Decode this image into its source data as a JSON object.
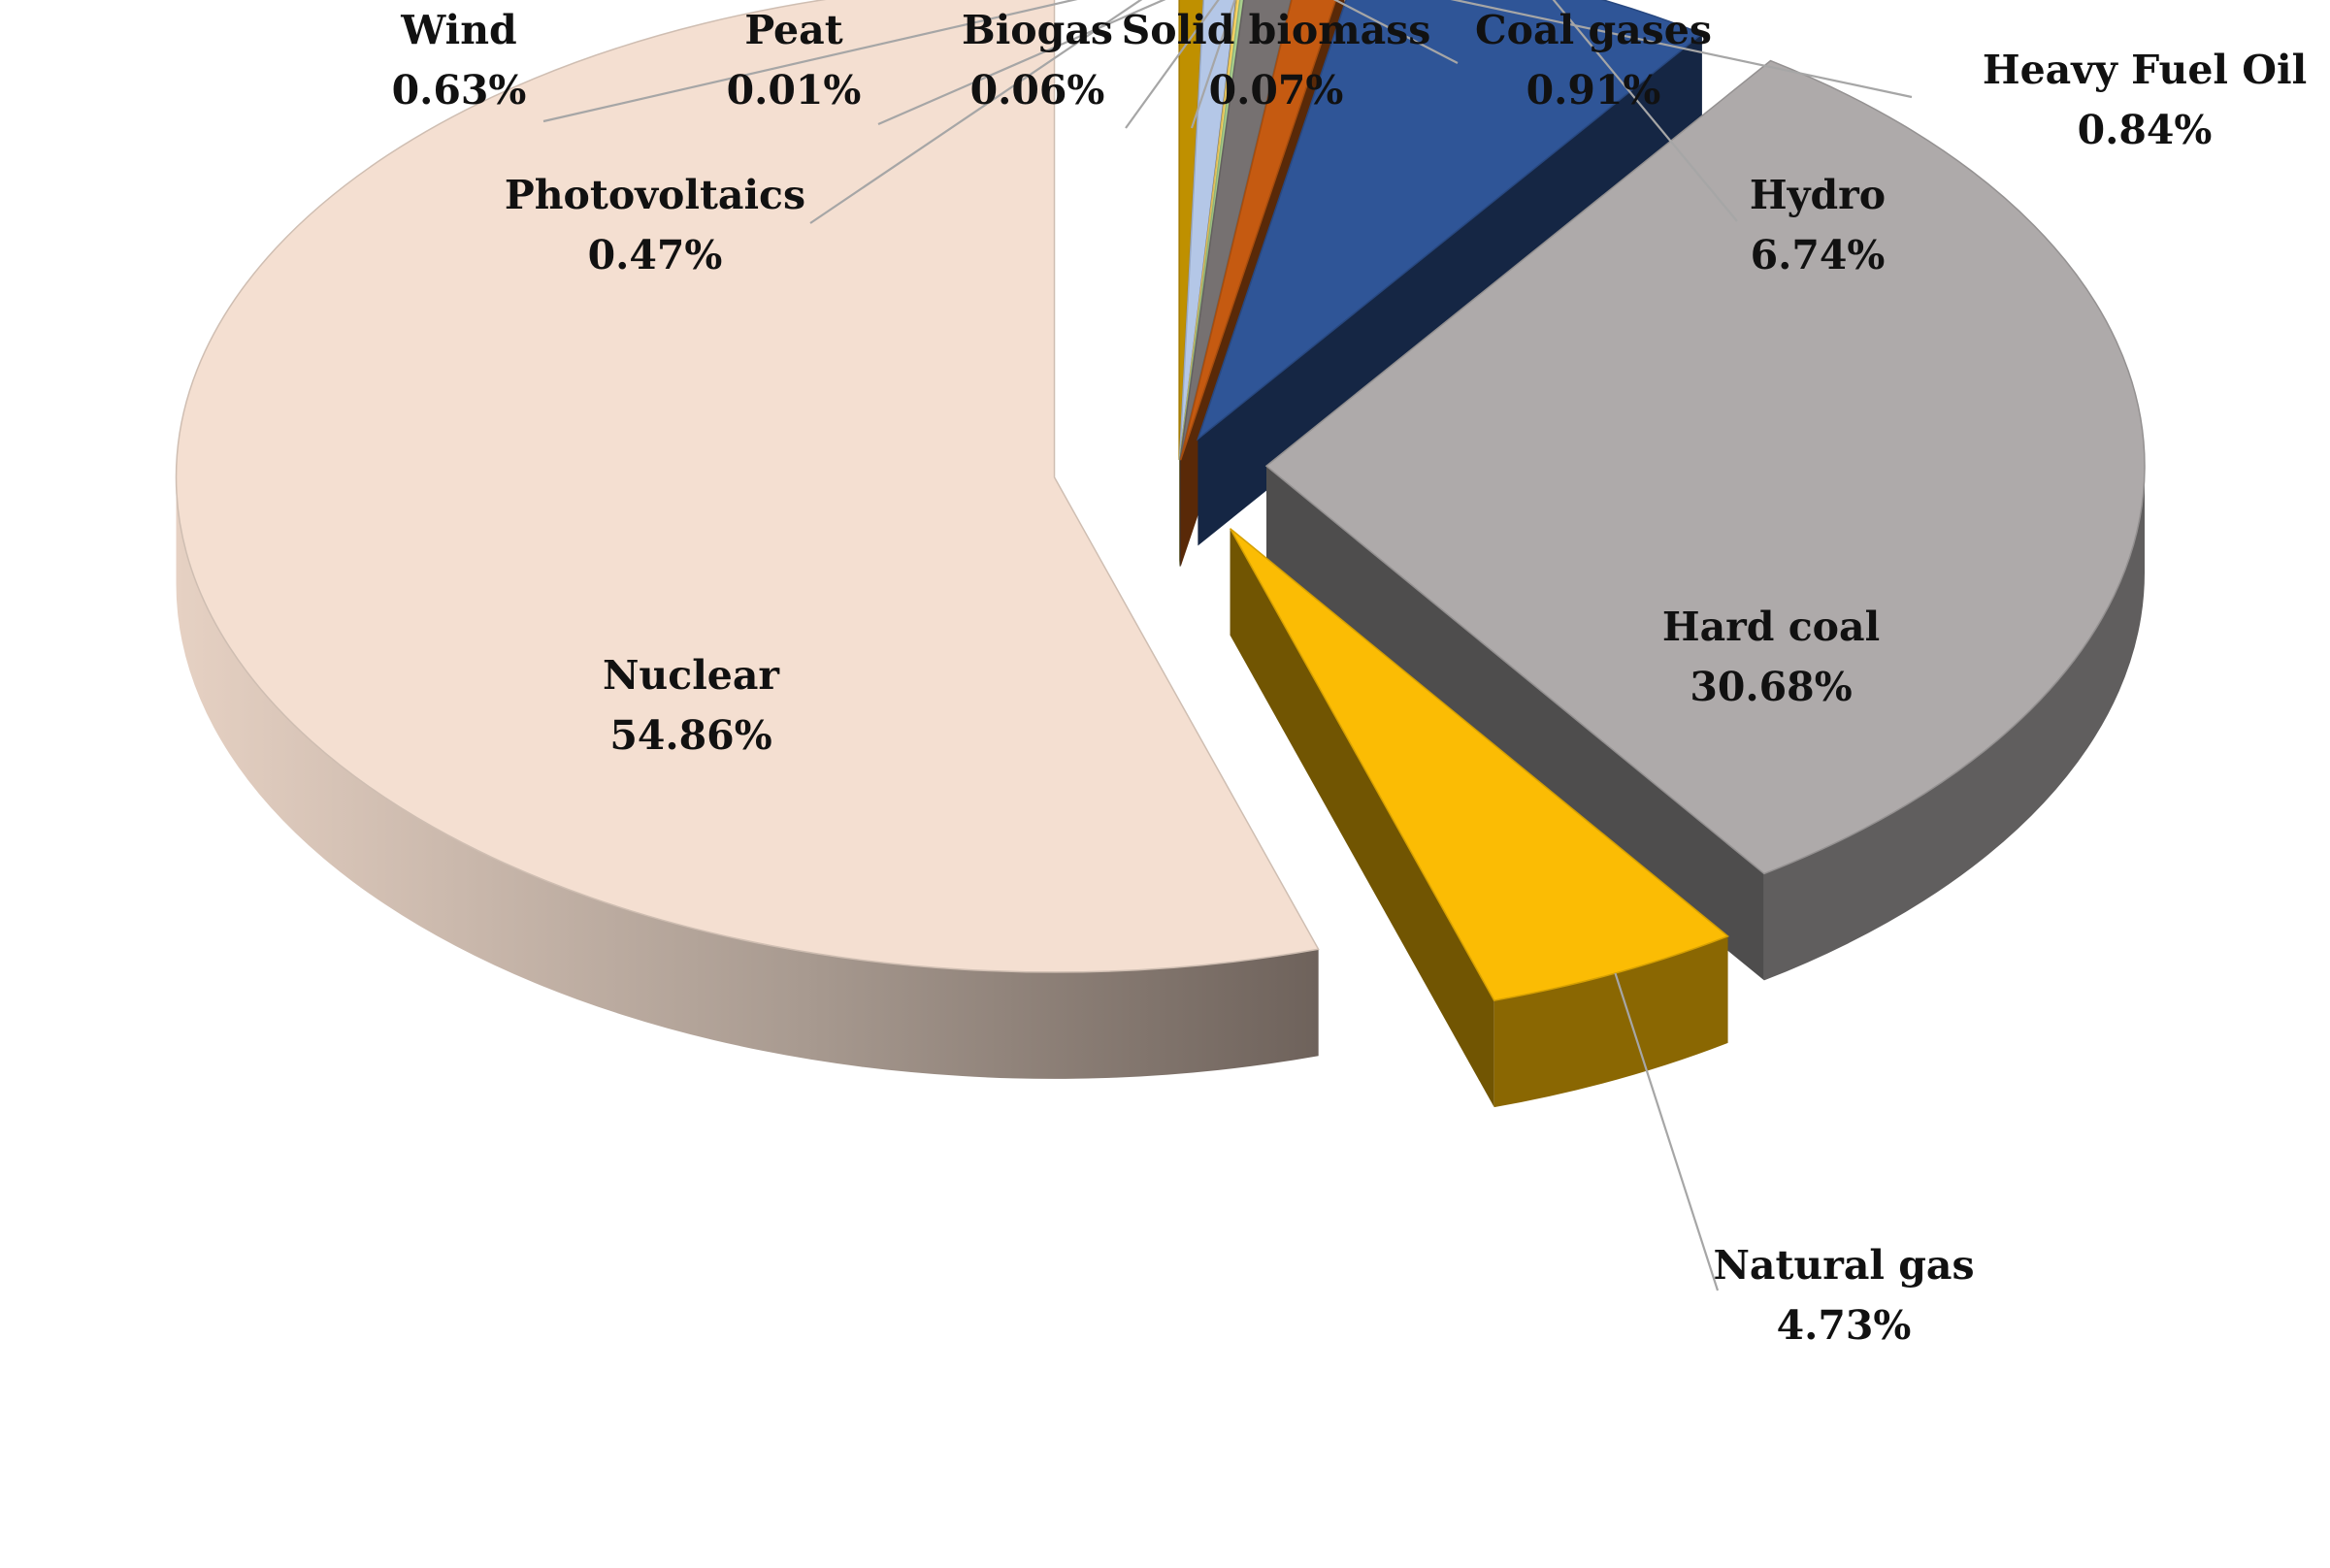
{
  "chart_data": {
    "type": "pie",
    "style": "3d-exploded",
    "title": "",
    "value_unit": "%",
    "legend": "none",
    "slices": [
      {
        "name": "Nuclear",
        "value": 54.86,
        "label": "54.86%",
        "color": "#f4dfd1"
      },
      {
        "name": "Photovoltaics",
        "value": 0.47,
        "label": "0.47%",
        "color": "#bf9000"
      },
      {
        "name": "Wind",
        "value": 0.63,
        "label": "0.63%",
        "color": "#b4c7e7"
      },
      {
        "name": "Peat",
        "value": 0.01,
        "label": "0.01%",
        "color": "#7f7f7f"
      },
      {
        "name": "Biogas",
        "value": 0.06,
        "label": "0.06%",
        "color": "#ffd966"
      },
      {
        "name": "Solid biomass",
        "value": 0.07,
        "label": "0.07%",
        "color": "#a9d18e"
      },
      {
        "name": "Coal gases",
        "value": 0.91,
        "label": "0.91%",
        "color": "#767171"
      },
      {
        "name": "Heavy Fuel Oil",
        "value": 0.84,
        "label": "0.84%",
        "color": "#c55a11"
      },
      {
        "name": "Hydro",
        "value": 6.74,
        "label": "6.74%",
        "color": "#2f5597"
      },
      {
        "name": "Hard coal",
        "value": 30.68,
        "label": "30.68%",
        "color": "#aeaaaa"
      },
      {
        "name": "Natural gas",
        "value": 4.73,
        "label": "4.73%",
        "color": "#fbbc04"
      }
    ]
  }
}
